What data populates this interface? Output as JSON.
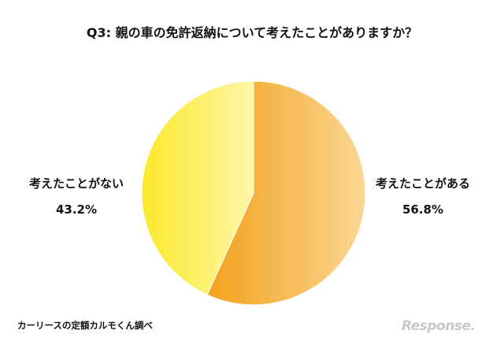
{
  "chart_data": {
    "type": "pie",
    "title": "Q3: 親の車の免許返納について考えたことがありますか？",
    "slices": [
      {
        "label": "考えたことがある",
        "value": 56.8,
        "value_label": "56.8%",
        "color_start": "#f2a11a",
        "color_end": "#fad794"
      },
      {
        "label": "考えたことがない",
        "value": 43.2,
        "value_label": "43.2%",
        "color_start": "#fbe92a",
        "color_end": "#fef6a8"
      }
    ],
    "start_angle": "12-o'clock",
    "direction": "clockwise",
    "legend": "none"
  },
  "source": "カーリースの定額カルモくん調べ",
  "watermark": "Response."
}
